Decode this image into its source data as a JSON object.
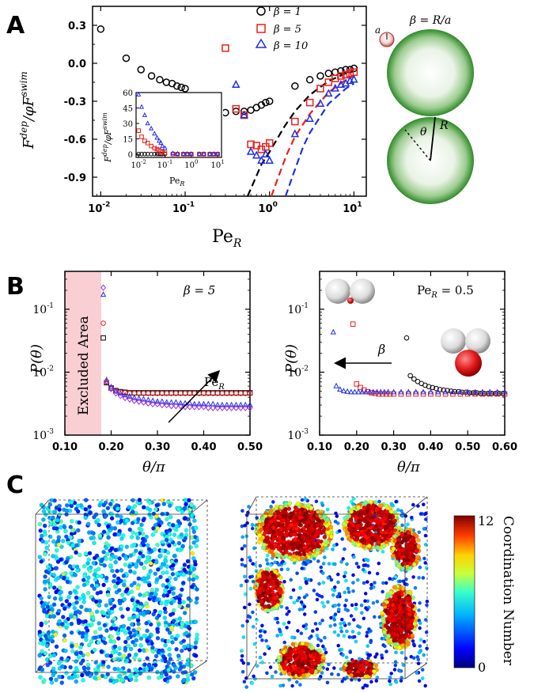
{
  "panels": {
    "A": {
      "letter": "A"
    },
    "B": {
      "letter": "B"
    },
    "C": {
      "letter": "C"
    }
  },
  "panelA": {
    "ylabel": "F^{dep}/φF^{swim}",
    "ylabel_main": "F",
    "ylabel_sup1": "dep",
    "ylabel_mid": "/φF",
    "ylabel_sup2": "swim",
    "xlabel": "Pe_R",
    "xlabel_main": "Pe",
    "xlabel_sub": "R",
    "yticks": [
      "0.3",
      "0.0",
      "-0.3",
      "-0.6",
      "-0.9"
    ],
    "xticks": [
      "10",
      "10",
      "10",
      "10"
    ],
    "xtick_exps": [
      "-2",
      "-1",
      "0",
      "1"
    ],
    "legend": [
      {
        "label": "β = 1",
        "color": "#000000",
        "marker": "circle"
      },
      {
        "label": "β = 5",
        "color": "#e8201c",
        "marker": "square"
      },
      {
        "label": "β = 10",
        "color": "#1e2fe6",
        "marker": "triangle"
      }
    ],
    "schematic": {
      "beta_label": "β = R/a",
      "a_label": "a",
      "theta_label": "θ",
      "R_label": "R"
    },
    "inset": {
      "yticks": [
        "60",
        "45",
        "30",
        "15",
        "0"
      ],
      "xticks": [
        "10",
        "10",
        "10",
        "10"
      ],
      "xtick_exps": [
        "-2",
        "-1",
        "0",
        "1"
      ],
      "xlabel": "Pe_R",
      "ylabel": "F^{dep}/φF^{swim}"
    }
  },
  "panelB": {
    "left": {
      "annotation": "β = 5",
      "excluded_label": "Excluded Area",
      "arrow_label": "Pe_R",
      "xlabel": "θ/π",
      "ylabel": "P(θ)",
      "xticks": [
        "0.10",
        "0.20",
        "0.30",
        "0.40",
        "0.50"
      ],
      "ytick_exps": [
        "-1",
        "-2",
        "-3"
      ]
    },
    "right": {
      "annotation": "Pe_R = 0.5",
      "arrow_label": "β",
      "xlabel": "θ/π",
      "ylabel": "P(θ)",
      "xticks": [
        "0.10",
        "0.20",
        "0.30",
        "0.40",
        "0.50",
        "0.60"
      ],
      "ytick_exps": [
        "-1",
        "-2",
        "-3"
      ]
    }
  },
  "panelC": {
    "colorbar_max": "12",
    "colorbar_min": "0",
    "colorbar_label": "Coordination Number"
  },
  "colors": {
    "black": "#000000",
    "red": "#e8201c",
    "blue": "#1e2fe6",
    "purple": "#9b2fd8",
    "green": "#2e8b2e",
    "excluded": "#f9cfd3"
  },
  "chart_data": [
    {
      "type": "scatter",
      "panel": "A-main",
      "xscale": "log",
      "xlim": [
        0.008,
        14
      ],
      "ylim": [
        -1.05,
        0.45
      ],
      "xlabel": "Pe_R",
      "ylabel": "F^{dep}/φF^{swim}",
      "series": [
        {
          "name": "β = 1",
          "color": "#000000",
          "marker": "circle",
          "x": [
            0.01,
            0.02,
            0.03,
            0.04,
            0.05,
            0.06,
            0.07,
            0.08,
            0.09,
            0.1,
            0.2,
            0.3,
            0.4,
            0.5,
            0.6,
            0.7,
            0.8,
            0.9,
            1.0,
            2,
            3,
            4,
            5,
            6,
            7,
            8,
            9,
            10
          ],
          "y": [
            0.27,
            0.04,
            -0.05,
            -0.1,
            -0.13,
            -0.15,
            -0.16,
            -0.18,
            -0.19,
            -0.2,
            -0.36,
            -0.39,
            -0.38,
            -0.38,
            -0.37,
            -0.35,
            -0.33,
            -0.31,
            -0.3,
            -0.18,
            -0.13,
            -0.1,
            -0.08,
            -0.07,
            -0.06,
            -0.05,
            -0.05,
            -0.04
          ]
        },
        {
          "name": "β = 5",
          "color": "#e8201c",
          "marker": "square",
          "x": [
            0.3,
            0.4,
            0.5,
            0.6,
            0.7,
            0.8,
            0.9,
            1.0,
            2,
            3,
            4,
            5,
            6,
            7,
            8,
            9,
            10
          ],
          "y": [
            0.12,
            -0.36,
            -0.41,
            -0.64,
            -0.65,
            -0.68,
            -0.66,
            -0.63,
            -0.46,
            -0.31,
            -0.2,
            -0.15,
            -0.12,
            -0.1,
            -0.09,
            -0.08,
            -0.07
          ]
        },
        {
          "name": "β = 10",
          "color": "#1e2fe6",
          "marker": "triangle",
          "x": [
            0.4,
            0.5,
            0.6,
            0.7,
            0.8,
            0.9,
            1.0,
            2,
            3,
            4,
            5,
            6,
            7,
            8,
            9,
            10
          ],
          "y": [
            -0.17,
            -0.41,
            -0.7,
            -0.73,
            -0.77,
            -0.72,
            -0.77,
            -0.56,
            -0.44,
            -0.32,
            -0.24,
            -0.2,
            -0.17,
            -0.16,
            -0.14,
            -0.13
          ]
        }
      ],
      "theory_lines": [
        {
          "color": "#000000",
          "x": [
            0.55,
            0.8,
            1,
            1.5,
            2,
            3,
            5,
            8,
            10
          ],
          "y": [
            -1.05,
            -0.8,
            -0.7,
            -0.5,
            -0.38,
            -0.25,
            -0.14,
            -0.08,
            -0.06
          ]
        },
        {
          "color": "#e8201c",
          "x": [
            1.05,
            1.3,
            1.6,
            2,
            3,
            5,
            8,
            10
          ],
          "y": [
            -1.05,
            -0.88,
            -0.72,
            -0.58,
            -0.4,
            -0.23,
            -0.13,
            -0.1
          ]
        },
        {
          "color": "#1e2fe6",
          "x": [
            1.55,
            1.9,
            2.5,
            3,
            5,
            8,
            10
          ],
          "y": [
            -1.05,
            -0.88,
            -0.66,
            -0.55,
            -0.32,
            -0.2,
            -0.16
          ]
        }
      ]
    },
    {
      "type": "scatter",
      "panel": "A-inset",
      "xscale": "log",
      "xlim": [
        0.008,
        14
      ],
      "ylim": [
        -3,
        60
      ],
      "series": [
        {
          "name": "β = 1",
          "color": "#000000",
          "marker": "circle",
          "x": [
            0.01,
            0.013,
            0.017,
            0.022,
            0.03,
            0.04,
            0.05,
            0.06,
            0.07,
            0.08,
            0.1,
            0.2,
            0.3,
            0.5,
            0.7,
            1,
            2,
            3,
            5,
            7,
            10
          ],
          "y": [
            0.3,
            0.3,
            0.3,
            0.3,
            0.3,
            0.3,
            0.3,
            0.3,
            0.3,
            0.3,
            0.3,
            0.2,
            0.2,
            0.2,
            0.2,
            0.2,
            0.2,
            0.2,
            0.2,
            0.2,
            0.2
          ]
        },
        {
          "name": "β = 5",
          "color": "#e8201c",
          "marker": "square",
          "x": [
            0.01,
            0.013,
            0.017,
            0.022,
            0.03,
            0.04,
            0.05,
            0.06,
            0.07,
            0.08,
            0.1,
            0.2,
            0.3,
            0.5,
            0.7,
            1,
            2,
            3,
            5,
            7,
            10
          ],
          "y": [
            23,
            17,
            13,
            11,
            8,
            6,
            5,
            4,
            3,
            2,
            1.5,
            0.3,
            0.2,
            0.2,
            0.2,
            0.2,
            0.2,
            0.2,
            0.2,
            0.2,
            0.2
          ]
        },
        {
          "name": "β = 10",
          "color": "#1e2fe6",
          "marker": "triangle",
          "x": [
            0.01,
            0.013,
            0.017,
            0.022,
            0.03,
            0.04,
            0.05,
            0.06,
            0.07,
            0.08,
            0.1,
            0.2,
            0.3,
            0.5,
            0.7,
            1,
            2,
            3,
            5,
            7,
            10
          ],
          "y": [
            58,
            46,
            38,
            30,
            25,
            20,
            16,
            13,
            11,
            8,
            6,
            1,
            0.5,
            0.3,
            0.3,
            0.3,
            0.3,
            0.3,
            0.3,
            0.3,
            0.3
          ]
        }
      ]
    },
    {
      "type": "scatter",
      "panel": "B-left",
      "yscale": "log",
      "xlim": [
        0.1,
        0.5
      ],
      "ylim": [
        0.001,
        0.4
      ],
      "series": [
        {
          "name": "black",
          "color": "#000000",
          "marker": "square",
          "x": [
            0.183,
            0.19,
            0.2,
            0.21,
            0.22,
            0.23,
            0.24,
            0.25,
            0.26,
            0.27,
            0.28,
            0.29,
            0.3,
            0.31,
            0.32,
            0.33,
            0.34,
            0.35,
            0.36,
            0.37,
            0.38,
            0.39,
            0.4,
            0.41,
            0.42,
            0.43,
            0.44,
            0.45,
            0.46,
            0.47,
            0.48,
            0.49,
            0.5
          ],
          "y": [
            0.035,
            0.0068,
            0.0056,
            0.0051,
            0.0049,
            0.0048,
            0.0047,
            0.0047,
            0.0047,
            0.0047,
            0.0047,
            0.0047,
            0.0047,
            0.0047,
            0.0047,
            0.0047,
            0.0047,
            0.0047,
            0.0047,
            0.0047,
            0.0047,
            0.0047,
            0.0047,
            0.0047,
            0.0047,
            0.0047,
            0.0047,
            0.0047,
            0.0047,
            0.0047,
            0.0047,
            0.0047,
            0.0047
          ]
        },
        {
          "name": "red",
          "color": "#e8201c",
          "marker": "circle",
          "x": [
            0.183,
            0.19,
            0.2,
            0.21,
            0.22,
            0.23,
            0.24,
            0.25,
            0.26,
            0.27,
            0.28,
            0.29,
            0.3,
            0.31,
            0.32,
            0.33,
            0.34,
            0.35,
            0.36,
            0.37,
            0.38,
            0.39,
            0.4,
            0.41,
            0.42,
            0.43,
            0.44,
            0.45,
            0.46,
            0.47,
            0.48,
            0.49,
            0.5
          ],
          "y": [
            0.06,
            0.007,
            0.0056,
            0.005,
            0.0048,
            0.0047,
            0.0046,
            0.0046,
            0.0046,
            0.0046,
            0.0046,
            0.0046,
            0.0046,
            0.0046,
            0.0046,
            0.0046,
            0.0046,
            0.0046,
            0.0046,
            0.0046,
            0.0046,
            0.0046,
            0.0046,
            0.0046,
            0.0046,
            0.0046,
            0.0046,
            0.0046,
            0.0046,
            0.0046,
            0.0046,
            0.0046,
            0.0046
          ]
        },
        {
          "name": "blue",
          "color": "#1e2fe6",
          "marker": "triangle",
          "x": [
            0.183,
            0.19,
            0.2,
            0.21,
            0.22,
            0.23,
            0.24,
            0.25,
            0.26,
            0.27,
            0.28,
            0.29,
            0.3,
            0.31,
            0.32,
            0.33,
            0.34,
            0.35,
            0.36,
            0.37,
            0.38,
            0.39,
            0.4,
            0.41,
            0.42,
            0.43,
            0.44,
            0.45,
            0.46,
            0.47,
            0.48,
            0.49,
            0.5
          ],
          "y": [
            0.17,
            0.0075,
            0.0058,
            0.005,
            0.0046,
            0.0043,
            0.0041,
            0.0039,
            0.0038,
            0.0037,
            0.0036,
            0.0035,
            0.0034,
            0.0034,
            0.0033,
            0.0033,
            0.0033,
            0.0032,
            0.0032,
            0.0032,
            0.0031,
            0.0031,
            0.0031,
            0.0031,
            0.0031,
            0.003,
            0.003,
            0.003,
            0.003,
            0.003,
            0.003,
            0.003,
            0.003
          ]
        },
        {
          "name": "purple",
          "color": "#9b2fd8",
          "marker": "diamond",
          "x": [
            0.183,
            0.19,
            0.2,
            0.21,
            0.22,
            0.23,
            0.24,
            0.25,
            0.26,
            0.27,
            0.28,
            0.29,
            0.3,
            0.31,
            0.32,
            0.33,
            0.34,
            0.35,
            0.36,
            0.37,
            0.38,
            0.39,
            0.4,
            0.41,
            0.42,
            0.43,
            0.44,
            0.45,
            0.46,
            0.47,
            0.48,
            0.49,
            0.5
          ],
          "y": [
            0.22,
            0.0072,
            0.0054,
            0.0046,
            0.0042,
            0.0039,
            0.0037,
            0.0035,
            0.0034,
            0.0033,
            0.0032,
            0.0031,
            0.0031,
            0.003,
            0.003,
            0.0029,
            0.0029,
            0.0029,
            0.0028,
            0.0028,
            0.0028,
            0.0028,
            0.0028,
            0.0027,
            0.0027,
            0.0027,
            0.0027,
            0.0027,
            0.0027,
            0.0027,
            0.0027,
            0.0027,
            0.0027
          ]
        }
      ]
    },
    {
      "type": "scatter",
      "panel": "B-right",
      "yscale": "log",
      "xlim": [
        0.1,
        0.6
      ],
      "ylim": [
        0.001,
        0.4
      ],
      "series": [
        {
          "name": "black",
          "color": "#000000",
          "marker": "circle",
          "x": [
            0.335,
            0.345,
            0.355,
            0.365,
            0.375,
            0.385,
            0.395,
            0.405,
            0.415,
            0.425,
            0.435,
            0.445,
            0.455,
            0.465,
            0.475,
            0.485,
            0.495,
            0.505,
            0.515,
            0.525,
            0.535,
            0.545,
            0.555,
            0.565,
            0.575,
            0.585,
            0.595
          ],
          "y": [
            0.035,
            0.0088,
            0.0078,
            0.0071,
            0.0066,
            0.0062,
            0.0059,
            0.0057,
            0.0055,
            0.0053,
            0.0052,
            0.0051,
            0.005,
            0.0049,
            0.0049,
            0.0048,
            0.0048,
            0.0047,
            0.0047,
            0.0047,
            0.0046,
            0.0046,
            0.0046,
            0.0046,
            0.0046,
            0.0046,
            0.0046
          ]
        },
        {
          "name": "red",
          "color": "#e8201c",
          "marker": "square",
          "x": [
            0.19,
            0.2,
            0.21,
            0.22,
            0.23,
            0.24,
            0.25,
            0.26,
            0.27,
            0.28,
            0.29,
            0.3,
            0.32,
            0.34,
            0.36,
            0.38,
            0.4,
            0.42,
            0.44,
            0.46,
            0.48,
            0.5,
            0.52,
            0.54,
            0.56,
            0.58,
            0.6
          ],
          "y": [
            0.058,
            0.0065,
            0.0057,
            0.0052,
            0.0049,
            0.0047,
            0.0046,
            0.0045,
            0.0045,
            0.0045,
            0.0045,
            0.0045,
            0.0045,
            0.0045,
            0.0045,
            0.0045,
            0.0045,
            0.0045,
            0.0045,
            0.0045,
            0.0045,
            0.0045,
            0.0045,
            0.0045,
            0.0045,
            0.0045,
            0.0045
          ]
        },
        {
          "name": "blue",
          "color": "#1e2fe6",
          "marker": "triangle",
          "x": [
            0.137,
            0.145,
            0.155,
            0.165,
            0.175,
            0.185,
            0.195,
            0.205,
            0.215,
            0.225,
            0.235,
            0.245,
            0.255,
            0.265,
            0.275,
            0.285,
            0.3,
            0.32,
            0.34,
            0.36,
            0.38,
            0.4,
            0.42,
            0.44,
            0.46,
            0.48,
            0.5,
            0.52,
            0.54,
            0.56,
            0.58,
            0.6
          ],
          "y": [
            0.043,
            0.006,
            0.0053,
            0.005,
            0.0049,
            0.0048,
            0.0048,
            0.0048,
            0.0048,
            0.0048,
            0.0048,
            0.0048,
            0.0048,
            0.0048,
            0.0048,
            0.0048,
            0.0048,
            0.0048,
            0.0048,
            0.0048,
            0.0048,
            0.0048,
            0.0048,
            0.0048,
            0.0048,
            0.0048,
            0.0048,
            0.0048,
            0.0048,
            0.0048,
            0.0048,
            0.0048
          ]
        }
      ]
    }
  ]
}
